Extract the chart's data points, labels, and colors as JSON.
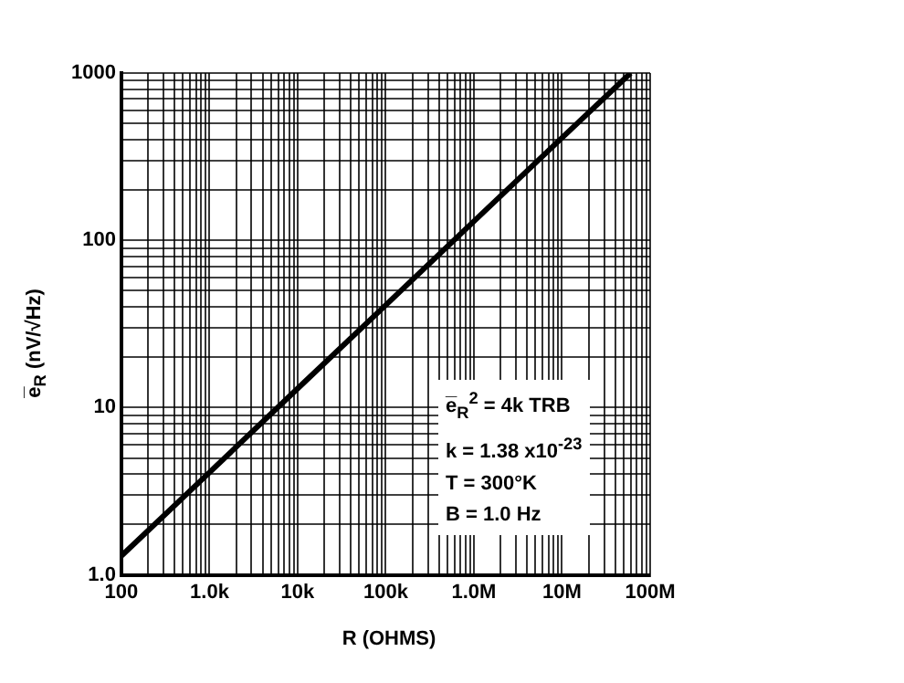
{
  "chart_data": {
    "type": "line",
    "xlabel": "R (OHMS)",
    "ylabel": "e̅$_{R}$ (nV/√Hz)",
    "x": [
      100,
      1000,
      10000,
      100000,
      1000000,
      10000000,
      60000000
    ],
    "series": [
      {
        "color": "#000000",
        "values": [
          1.3,
          4.1,
          13,
          41,
          130,
          410,
          1000
        ]
      }
    ],
    "log": "xy",
    "xlim": [
      100,
      100000000
    ],
    "ylim": [
      1,
      1000
    ],
    "xticks": [
      {
        "value": 100,
        "label": "100"
      },
      {
        "value": 200,
        "label": null
      },
      {
        "value": 300,
        "label": null
      },
      {
        "value": 400,
        "label": null
      },
      {
        "value": 500,
        "label": null
      },
      {
        "value": 600,
        "label": null
      },
      {
        "value": 700,
        "label": null
      },
      {
        "value": 800,
        "label": null
      },
      {
        "value": 900,
        "label": null
      },
      {
        "value": 1000,
        "label": "1.0k"
      },
      {
        "value": 2000,
        "label": null
      },
      {
        "value": 3000,
        "label": null
      },
      {
        "value": 4000,
        "label": null
      },
      {
        "value": 5000,
        "label": null
      },
      {
        "value": 6000,
        "label": null
      },
      {
        "value": 7000,
        "label": null
      },
      {
        "value": 8000,
        "label": null
      },
      {
        "value": 9000,
        "label": null
      },
      {
        "value": 10000,
        "label": "10k"
      },
      {
        "value": 20000,
        "label": null
      },
      {
        "value": 30000,
        "label": null
      },
      {
        "value": 40000,
        "label": null
      },
      {
        "value": 50000,
        "label": null
      },
      {
        "value": 60000,
        "label": null
      },
      {
        "value": 70000,
        "label": null
      },
      {
        "value": 80000,
        "label": null
      },
      {
        "value": 90000,
        "label": null
      },
      {
        "value": 100000,
        "label": "100k"
      },
      {
        "value": 200000,
        "label": null
      },
      {
        "value": 300000,
        "label": null
      },
      {
        "value": 400000,
        "label": null
      },
      {
        "value": 500000,
        "label": null
      },
      {
        "value": 600000,
        "label": null
      },
      {
        "value": 700000,
        "label": null
      },
      {
        "value": 800000,
        "label": null
      },
      {
        "value": 900000,
        "label": null
      },
      {
        "value": 1000000,
        "label": "1.0M"
      },
      {
        "value": 2000000,
        "label": null
      },
      {
        "value": 3000000,
        "label": null
      },
      {
        "value": 4000000,
        "label": null
      },
      {
        "value": 5000000,
        "label": null
      },
      {
        "value": 6000000,
        "label": null
      },
      {
        "value": 7000000,
        "label": null
      },
      {
        "value": 8000000,
        "label": null
      },
      {
        "value": 9000000,
        "label": null
      },
      {
        "value": 10000000,
        "label": "10M"
      },
      {
        "value": 20000000,
        "label": null
      },
      {
        "value": 30000000,
        "label": null
      },
      {
        "value": 40000000,
        "label": null
      },
      {
        "value": 50000000,
        "label": null
      },
      {
        "value": 60000000,
        "label": null
      },
      {
        "value": 70000000,
        "label": null
      },
      {
        "value": 80000000,
        "label": null
      },
      {
        "value": 90000000,
        "label": null
      },
      {
        "value": 100000000,
        "label": "100M"
      }
    ],
    "yticks": [
      {
        "value": 1,
        "label": "1.0"
      },
      {
        "value": 2,
        "label": null
      },
      {
        "value": 3,
        "label": null
      },
      {
        "value": 4,
        "label": null
      },
      {
        "value": 5,
        "label": null
      },
      {
        "value": 6,
        "label": null
      },
      {
        "value": 7,
        "label": null
      },
      {
        "value": 8,
        "label": null
      },
      {
        "value": 9,
        "label": null
      },
      {
        "value": 10,
        "label": "10"
      },
      {
        "value": 20,
        "label": null
      },
      {
        "value": 30,
        "label": null
      },
      {
        "value": 40,
        "label": null
      },
      {
        "value": 50,
        "label": null
      },
      {
        "value": 60,
        "label": null
      },
      {
        "value": 70,
        "label": null
      },
      {
        "value": 80,
        "label": null
      },
      {
        "value": 90,
        "label": null
      },
      {
        "value": 100,
        "label": "100"
      },
      {
        "value": 200,
        "label": null
      },
      {
        "value": 300,
        "label": null
      },
      {
        "value": 400,
        "label": null
      },
      {
        "value": 500,
        "label": null
      },
      {
        "value": 600,
        "label": null
      },
      {
        "value": 700,
        "label": null
      },
      {
        "value": 800,
        "label": null
      },
      {
        "value": 900,
        "label": null
      },
      {
        "value": 1000,
        "label": "1000"
      }
    ],
    "grid": true,
    "marker": "none",
    "line_style": "solid",
    "legend": false,
    "annotations": [
      "e̅$_{R}$$^{2}$ = 4k TRB",
      "k = 1.38 x10$^{-23}$",
      "T = 300°K",
      "B = 1.0 Hz"
    ]
  }
}
